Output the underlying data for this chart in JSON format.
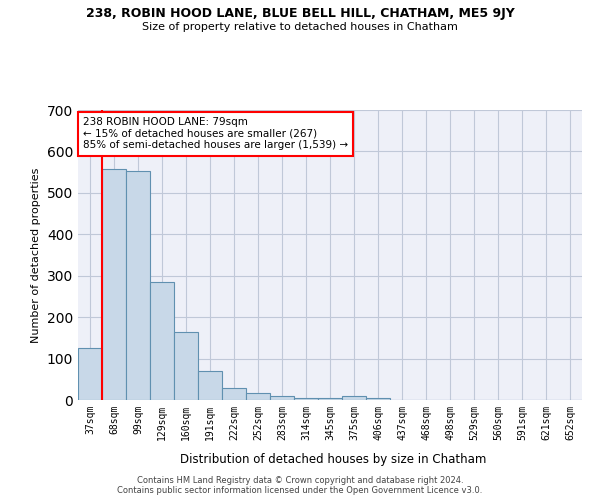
{
  "title": "238, ROBIN HOOD LANE, BLUE BELL HILL, CHATHAM, ME5 9JY",
  "subtitle": "Size of property relative to detached houses in Chatham",
  "xlabel": "Distribution of detached houses by size in Chatham",
  "ylabel": "Number of detached properties",
  "categories": [
    "37sqm",
    "68sqm",
    "99sqm",
    "129sqm",
    "160sqm",
    "191sqm",
    "222sqm",
    "252sqm",
    "283sqm",
    "314sqm",
    "345sqm",
    "375sqm",
    "406sqm",
    "437sqm",
    "468sqm",
    "498sqm",
    "529sqm",
    "560sqm",
    "591sqm",
    "621sqm",
    "652sqm"
  ],
  "values": [
    126,
    558,
    553,
    285,
    164,
    70,
    30,
    18,
    10,
    6,
    6,
    10,
    6,
    0,
    0,
    0,
    0,
    0,
    0,
    0,
    0
  ],
  "bar_color": "#c8d8e8",
  "bar_edge_color": "#6090b0",
  "grid_color": "#c0c8d8",
  "background_color": "#eef0f8",
  "vline_x_index": 1,
  "vline_color": "red",
  "annotation_text": "238 ROBIN HOOD LANE: 79sqm\n← 15% of detached houses are smaller (267)\n85% of semi-detached houses are larger (1,539) →",
  "annotation_box_color": "white",
  "annotation_box_edge": "red",
  "ylim": [
    0,
    700
  ],
  "yticks": [
    0,
    100,
    200,
    300,
    400,
    500,
    600,
    700
  ],
  "footer_line1": "Contains HM Land Registry data © Crown copyright and database right 2024.",
  "footer_line2": "Contains public sector information licensed under the Open Government Licence v3.0."
}
